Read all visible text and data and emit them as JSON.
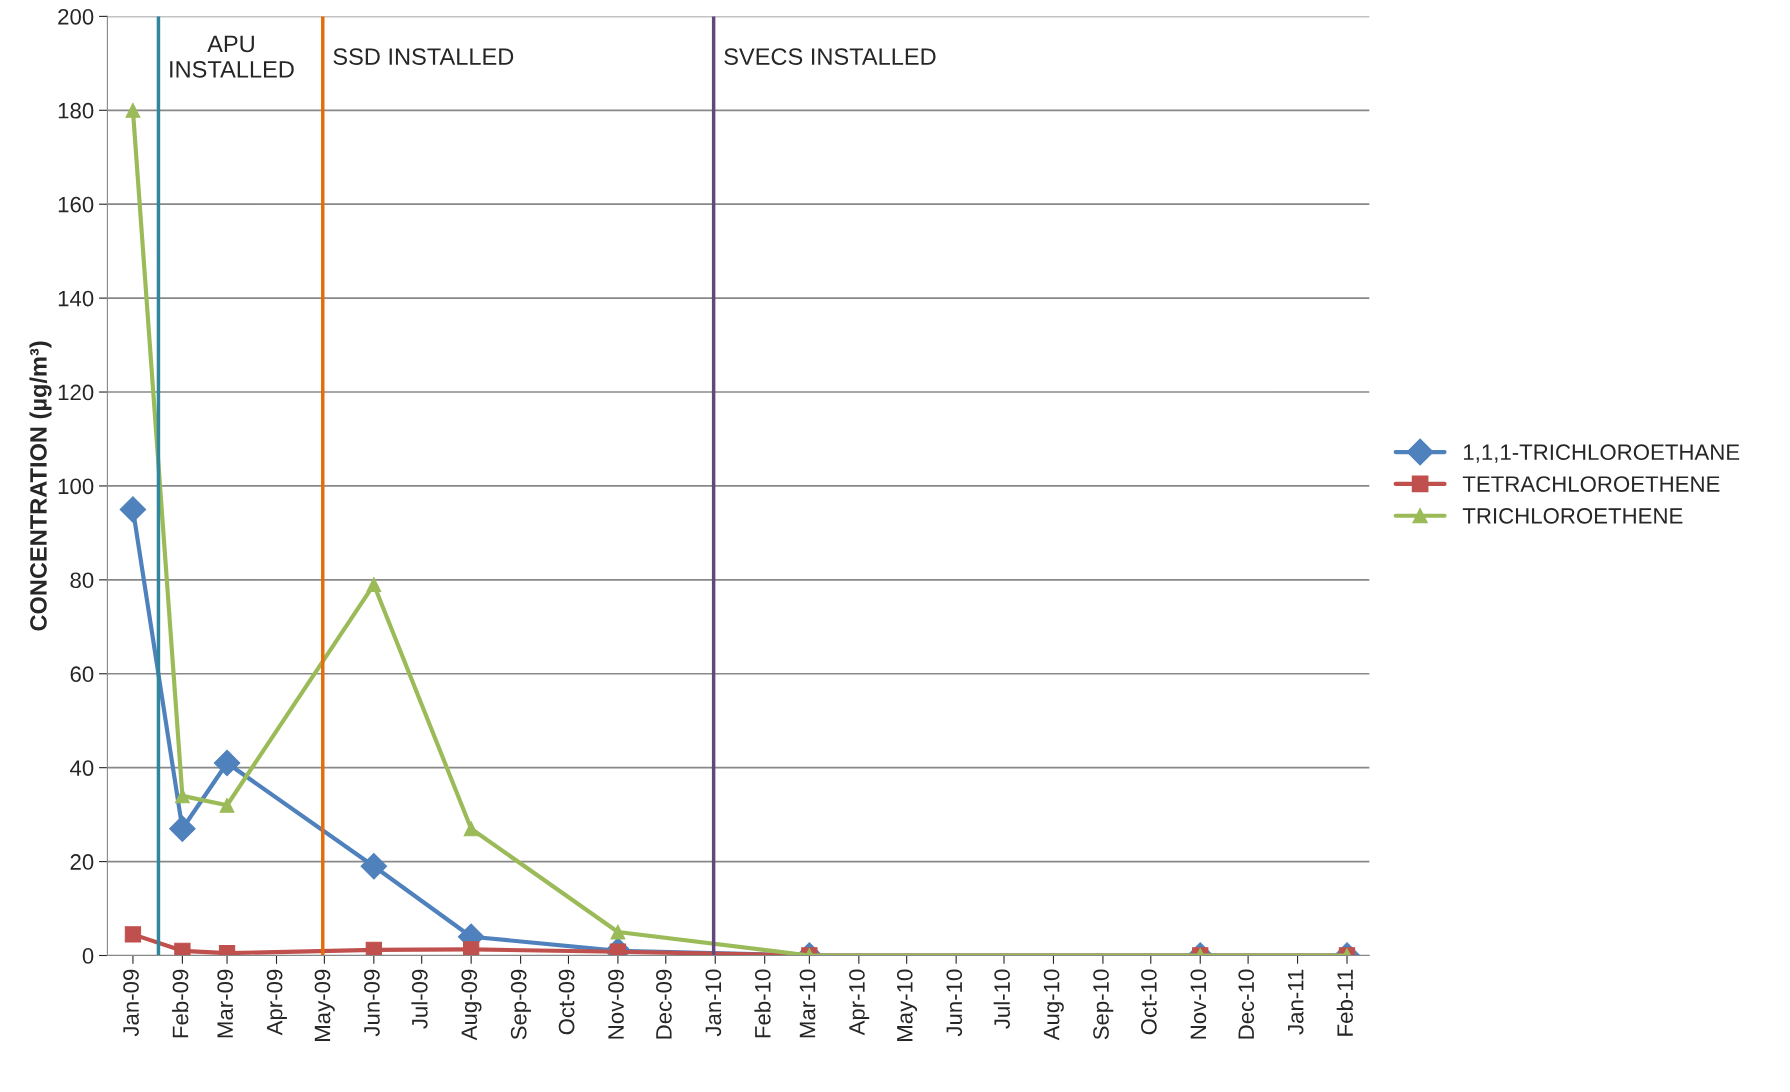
{
  "chart_data": {
    "type": "line",
    "ylabel": "CONCENTRATION (µg/m³)",
    "x": [
      "2009-01",
      "2009-02",
      "2009-03",
      "2009-06",
      "2009-08",
      "2009-11",
      "2010-03",
      "2010-11",
      "2011-02"
    ],
    "series": [
      {
        "name": "1,1,1-TRICHLOROETHANE",
        "color": "#4f81bd",
        "marker": "diamond",
        "values": [
          95,
          27,
          41,
          19,
          4,
          1,
          0,
          0,
          0
        ]
      },
      {
        "name": "TETRACHLOROETHENE",
        "color": "#c0504d",
        "marker": "square",
        "values": [
          4.5,
          1,
          0.5,
          1.2,
          1.3,
          0.8,
          0,
          0,
          0
        ]
      },
      {
        "name": "TRICHLOROETHENE",
        "color": "#9bbb59",
        "marker": "triangle",
        "values": [
          180,
          34,
          32,
          79,
          27,
          5,
          0,
          0,
          0
        ]
      }
    ],
    "xlim": [
      "2008-12-16",
      "2011-02-15"
    ],
    "xticks": [
      {
        "value": "2009-01",
        "label": "Jan-09"
      },
      {
        "value": "2009-02",
        "label": "Feb-09"
      },
      {
        "value": "2009-03",
        "label": "Mar-09"
      },
      {
        "value": "2009-04",
        "label": "Apr-09"
      },
      {
        "value": "2009-05",
        "label": "May-09"
      },
      {
        "value": "2009-06",
        "label": "Jun-09"
      },
      {
        "value": "2009-07",
        "label": "Jul-09"
      },
      {
        "value": "2009-08",
        "label": "Aug-09"
      },
      {
        "value": "2009-09",
        "label": "Sep-09"
      },
      {
        "value": "2009-10",
        "label": "Oct-09"
      },
      {
        "value": "2009-11",
        "label": "Nov-09"
      },
      {
        "value": "2009-12",
        "label": "Dec-09"
      },
      {
        "value": "2010-01",
        "label": "Jan-10"
      },
      {
        "value": "2010-02",
        "label": "Feb-10"
      },
      {
        "value": "2010-03",
        "label": "Mar-10"
      },
      {
        "value": "2010-04",
        "label": "Apr-10"
      },
      {
        "value": "2010-05",
        "label": "May-10"
      },
      {
        "value": "2010-06",
        "label": "Jun-10"
      },
      {
        "value": "2010-07",
        "label": "Jul-10"
      },
      {
        "value": "2010-08",
        "label": "Aug-10"
      },
      {
        "value": "2010-09",
        "label": "Sep-10"
      },
      {
        "value": "2010-10",
        "label": "Oct-10"
      },
      {
        "value": "2010-11",
        "label": "Nov-10"
      },
      {
        "value": "2010-12",
        "label": "Dec-10"
      },
      {
        "value": "2011-01",
        "label": "Jan-11"
      },
      {
        "value": "2011-02",
        "label": "Feb-11"
      }
    ],
    "ylim": [
      0,
      200
    ],
    "yticks": [
      0,
      20,
      40,
      60,
      80,
      100,
      120,
      140,
      160,
      180,
      200
    ],
    "grid": "y",
    "legend": "right",
    "line_style": "solid",
    "ref_lines": [
      {
        "axis": "x",
        "value": "2009-01-17",
        "label": "APU\nINSTALLED",
        "color": "#31859c"
      },
      {
        "axis": "x",
        "value": "2009-04-30",
        "label": "SSD INSTALLED",
        "color": "#e46c0a"
      },
      {
        "axis": "x",
        "value": "2009-12-31",
        "label": "SVECS INSTALLED",
        "color": "#604a7b"
      }
    ]
  }
}
